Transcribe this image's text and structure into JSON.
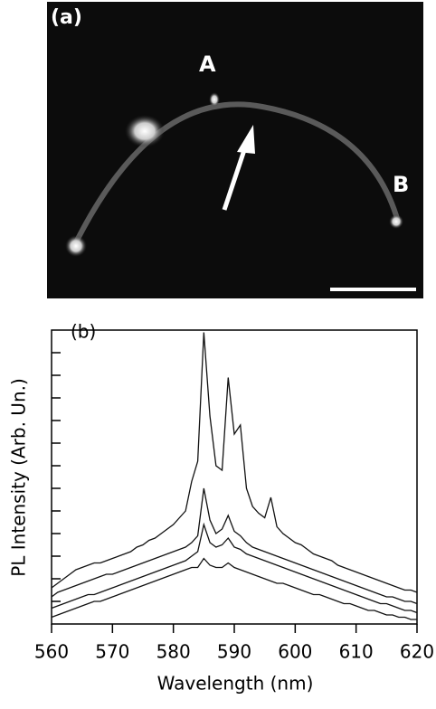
{
  "image_panel": {
    "label": "(a)",
    "point_a": "A",
    "point_b": "B"
  },
  "chart_data": {
    "type": "line",
    "annotation": "(b)",
    "x_label": "Wavelength (nm)",
    "y_label": "PL Intensity (Arb. Un.)",
    "x": [
      560,
      561,
      562,
      563,
      564,
      565,
      566,
      567,
      568,
      569,
      570,
      571,
      572,
      573,
      574,
      575,
      576,
      577,
      578,
      579,
      580,
      581,
      582,
      583,
      584,
      585,
      586,
      587,
      588,
      589,
      590,
      591,
      592,
      593,
      594,
      595,
      596,
      597,
      598,
      599,
      600,
      601,
      602,
      603,
      604,
      605,
      606,
      607,
      608,
      609,
      610,
      611,
      612,
      613,
      614,
      615,
      616,
      617,
      618,
      619,
      620
    ],
    "xlim": [
      560,
      620
    ],
    "xticks": [
      560,
      570,
      580,
      590,
      600,
      610,
      620
    ],
    "ylim": [
      0,
      13
    ],
    "yticks": [
      1,
      2,
      3,
      4,
      5,
      6,
      7,
      8,
      9,
      10,
      11,
      12
    ],
    "series": [
      {
        "color": "#111111",
        "values": [
          1.6,
          1.8,
          2.0,
          2.2,
          2.4,
          2.5,
          2.6,
          2.7,
          2.7,
          2.8,
          2.9,
          3.0,
          3.1,
          3.2,
          3.4,
          3.5,
          3.7,
          3.8,
          4.0,
          4.2,
          4.4,
          4.7,
          5.0,
          6.3,
          7.2,
          12.9,
          9.2,
          7.0,
          6.8,
          10.9,
          8.4,
          8.8,
          6.0,
          5.2,
          4.9,
          4.7,
          5.6,
          4.3,
          4.0,
          3.8,
          3.6,
          3.5,
          3.3,
          3.1,
          3.0,
          2.9,
          2.8,
          2.6,
          2.5,
          2.4,
          2.3,
          2.2,
          2.1,
          2.0,
          1.9,
          1.8,
          1.7,
          1.6,
          1.5,
          1.5,
          1.4
        ]
      },
      {
        "color": "#111111",
        "values": [
          1.2,
          1.4,
          1.5,
          1.6,
          1.7,
          1.8,
          1.9,
          2.0,
          2.1,
          2.2,
          2.2,
          2.3,
          2.4,
          2.5,
          2.6,
          2.7,
          2.8,
          2.9,
          3.0,
          3.1,
          3.2,
          3.3,
          3.4,
          3.6,
          3.9,
          6.0,
          4.6,
          4.0,
          4.2,
          4.8,
          4.1,
          3.9,
          3.6,
          3.4,
          3.3,
          3.2,
          3.1,
          3.0,
          2.9,
          2.8,
          2.7,
          2.6,
          2.5,
          2.4,
          2.3,
          2.2,
          2.1,
          2.0,
          1.9,
          1.8,
          1.7,
          1.6,
          1.5,
          1.4,
          1.3,
          1.2,
          1.2,
          1.1,
          1.0,
          1.0,
          0.9
        ]
      },
      {
        "color": "#111111",
        "values": [
          0.7,
          0.8,
          0.9,
          1.0,
          1.1,
          1.2,
          1.3,
          1.3,
          1.4,
          1.5,
          1.6,
          1.7,
          1.8,
          1.9,
          2.0,
          2.1,
          2.2,
          2.3,
          2.4,
          2.5,
          2.6,
          2.7,
          2.8,
          3.0,
          3.2,
          4.4,
          3.6,
          3.4,
          3.5,
          3.8,
          3.4,
          3.3,
          3.1,
          3.0,
          2.9,
          2.8,
          2.7,
          2.6,
          2.5,
          2.4,
          2.3,
          2.2,
          2.1,
          2.0,
          1.9,
          1.8,
          1.7,
          1.6,
          1.5,
          1.4,
          1.3,
          1.2,
          1.1,
          1.0,
          0.9,
          0.9,
          0.8,
          0.7,
          0.6,
          0.6,
          0.5
        ]
      },
      {
        "color": "#111111",
        "values": [
          0.3,
          0.4,
          0.5,
          0.6,
          0.7,
          0.8,
          0.9,
          1.0,
          1.0,
          1.1,
          1.2,
          1.3,
          1.4,
          1.5,
          1.6,
          1.7,
          1.8,
          1.9,
          2.0,
          2.1,
          2.2,
          2.3,
          2.4,
          2.5,
          2.5,
          2.9,
          2.6,
          2.5,
          2.5,
          2.7,
          2.5,
          2.4,
          2.3,
          2.2,
          2.1,
          2.0,
          1.9,
          1.8,
          1.8,
          1.7,
          1.6,
          1.5,
          1.4,
          1.3,
          1.3,
          1.2,
          1.1,
          1.0,
          0.9,
          0.9,
          0.8,
          0.7,
          0.6,
          0.6,
          0.5,
          0.4,
          0.4,
          0.3,
          0.3,
          0.2,
          0.2
        ]
      }
    ]
  }
}
